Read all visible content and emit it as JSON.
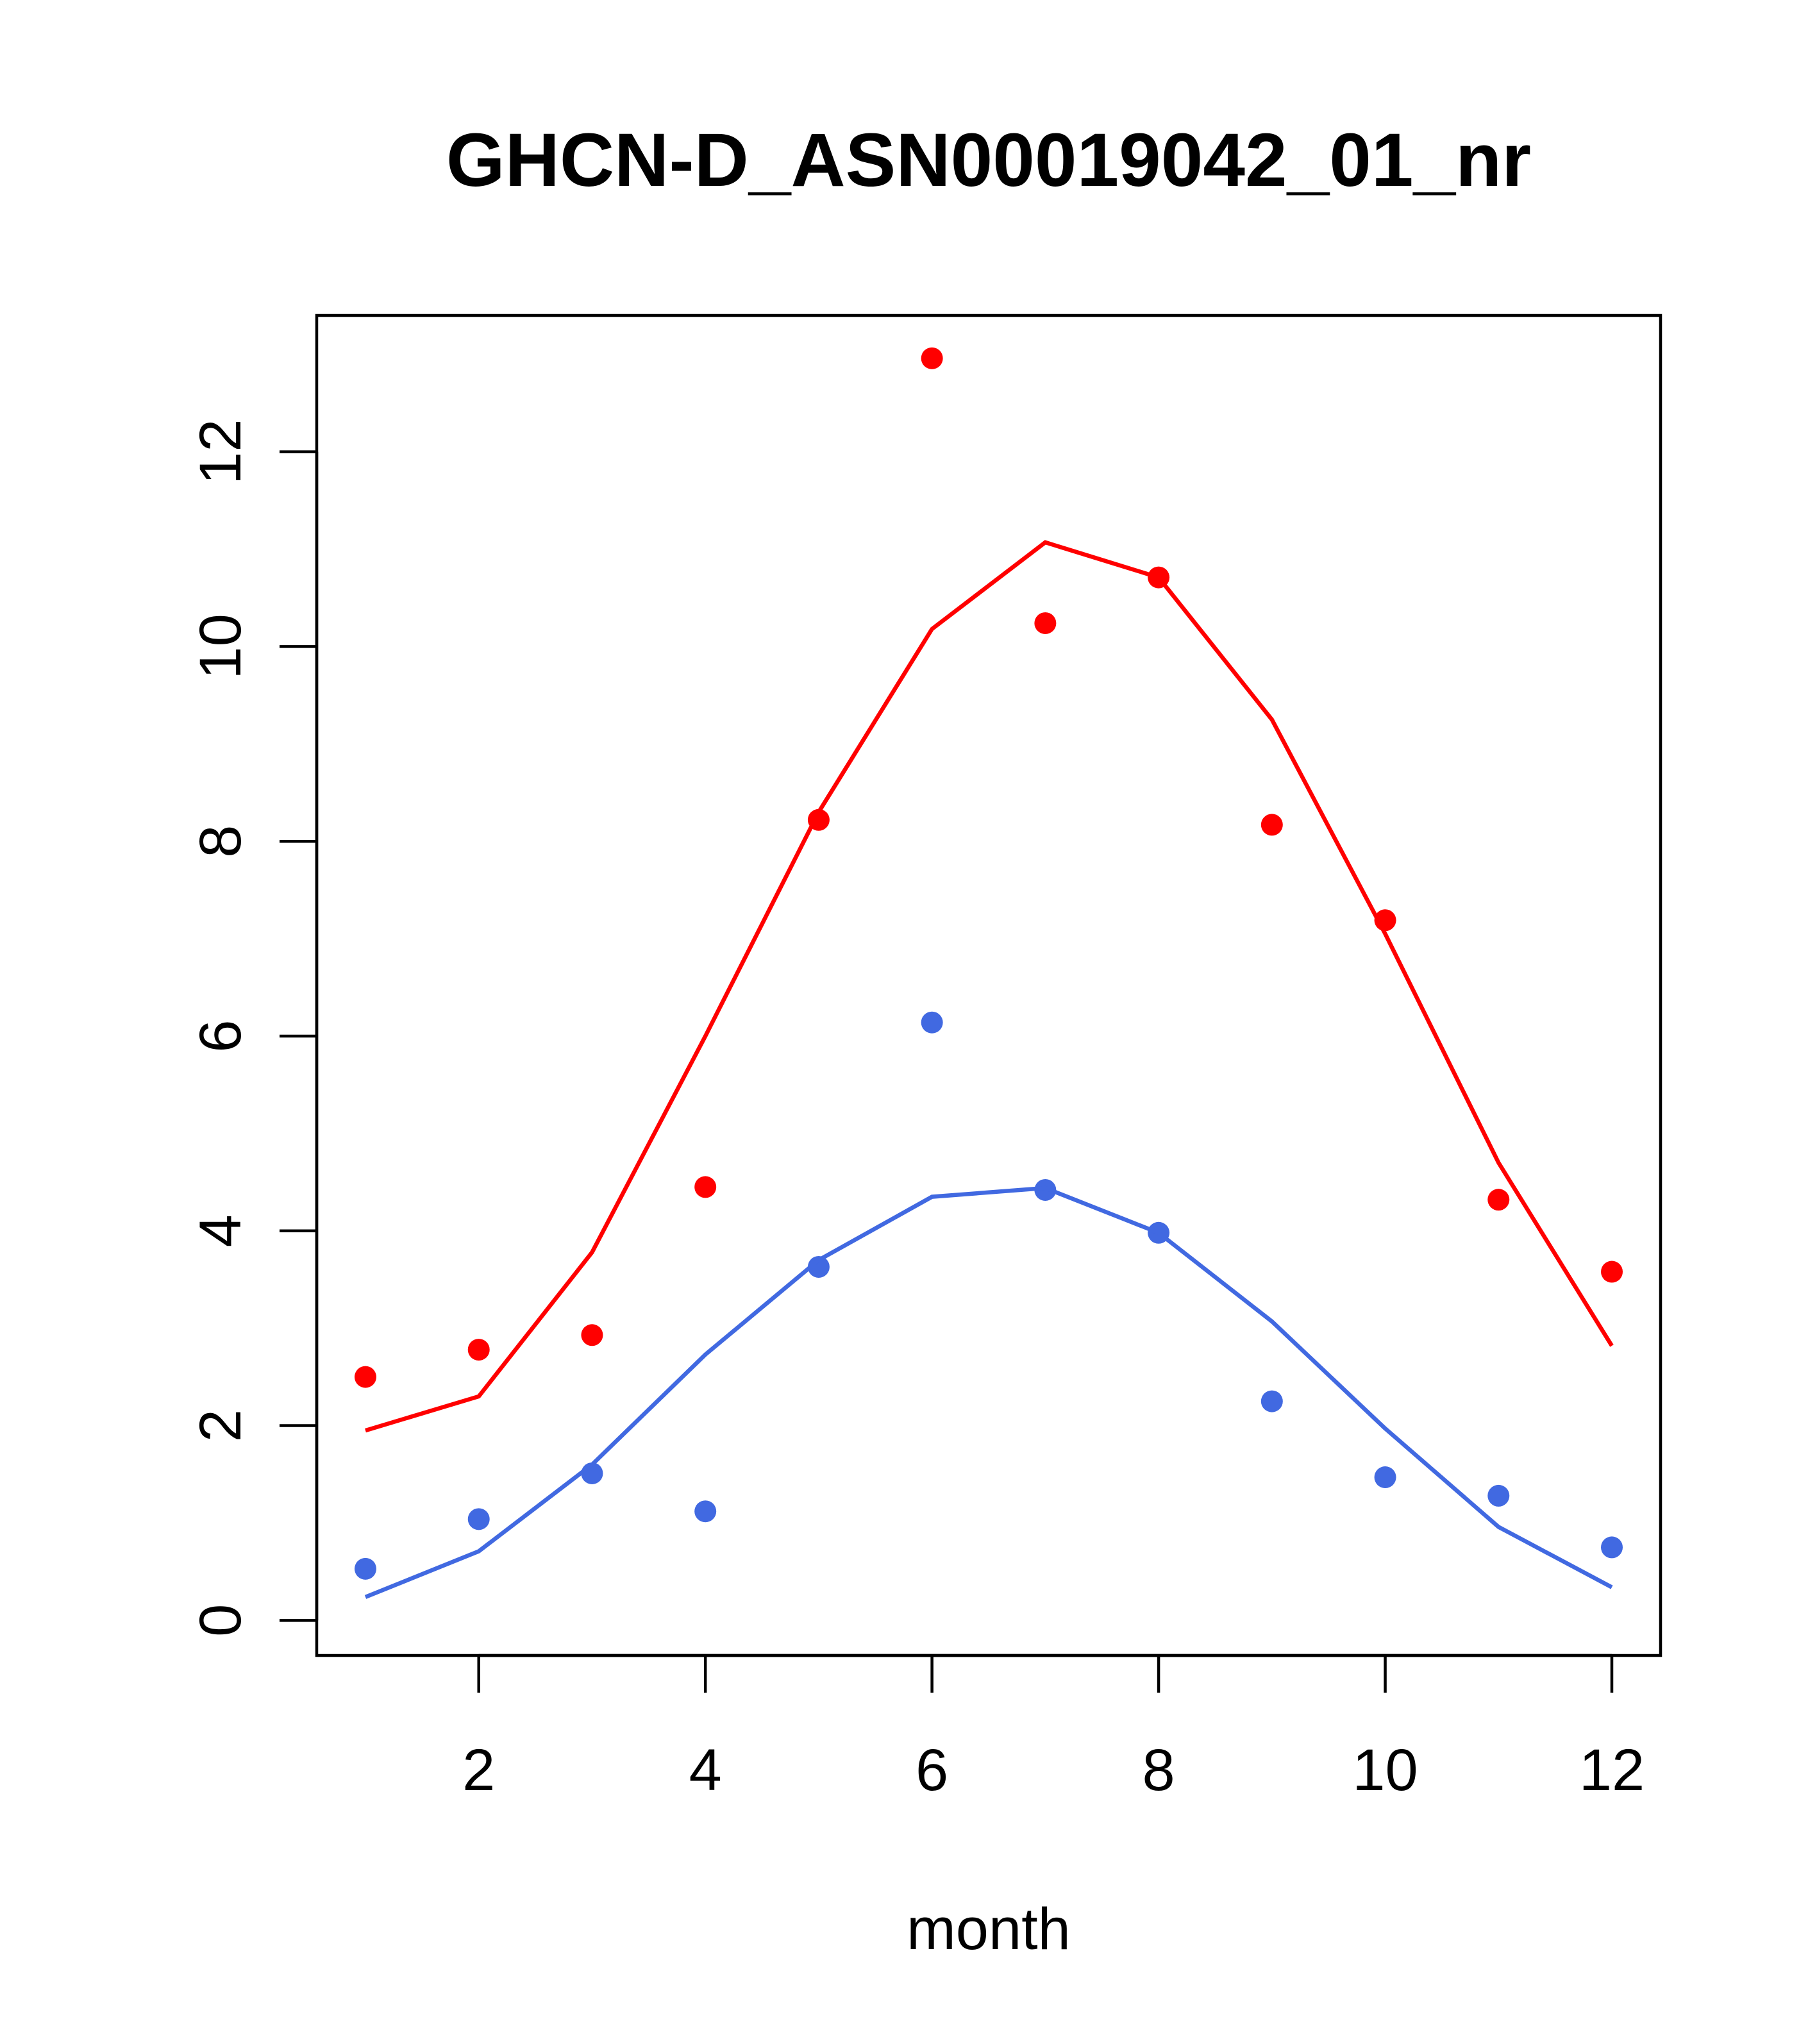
{
  "chart_data": {
    "type": "line",
    "title": "GHCN-D_ASN00019042_01_nr",
    "xlabel": "month",
    "ylabel": "",
    "xlim": [
      0.57,
      12.43
    ],
    "ylim": [
      -0.36,
      13.4
    ],
    "x_ticks": [
      2,
      4,
      6,
      8,
      10,
      12
    ],
    "y_ticks": [
      0,
      2,
      4,
      6,
      8,
      10,
      12
    ],
    "grid": false,
    "x": [
      1,
      2,
      3,
      4,
      5,
      6,
      7,
      8,
      9,
      10,
      11,
      12
    ],
    "series": [
      {
        "name": "red observed",
        "kind": "points",
        "color": "#ff0000",
        "values": [
          2.5,
          2.78,
          2.93,
          4.45,
          8.22,
          12.96,
          10.24,
          10.71,
          8.17,
          7.19,
          4.32,
          3.58
        ]
      },
      {
        "name": "red fitted",
        "kind": "line",
        "color": "#ff0000",
        "values": [
          1.95,
          2.3,
          3.78,
          6.0,
          8.3,
          10.18,
          11.07,
          10.71,
          9.25,
          7.05,
          4.7,
          2.82
        ]
      },
      {
        "name": "blue observed",
        "kind": "points",
        "color": "#4169e1",
        "values": [
          0.53,
          1.04,
          1.51,
          1.12,
          3.63,
          6.14,
          4.42,
          3.98,
          2.25,
          1.47,
          1.28,
          0.75
        ]
      },
      {
        "name": "blue fitted",
        "kind": "line",
        "color": "#4169e1",
        "values": [
          0.24,
          0.71,
          1.6,
          2.73,
          3.7,
          4.35,
          4.44,
          3.98,
          3.07,
          1.97,
          0.96,
          0.34
        ]
      }
    ]
  }
}
